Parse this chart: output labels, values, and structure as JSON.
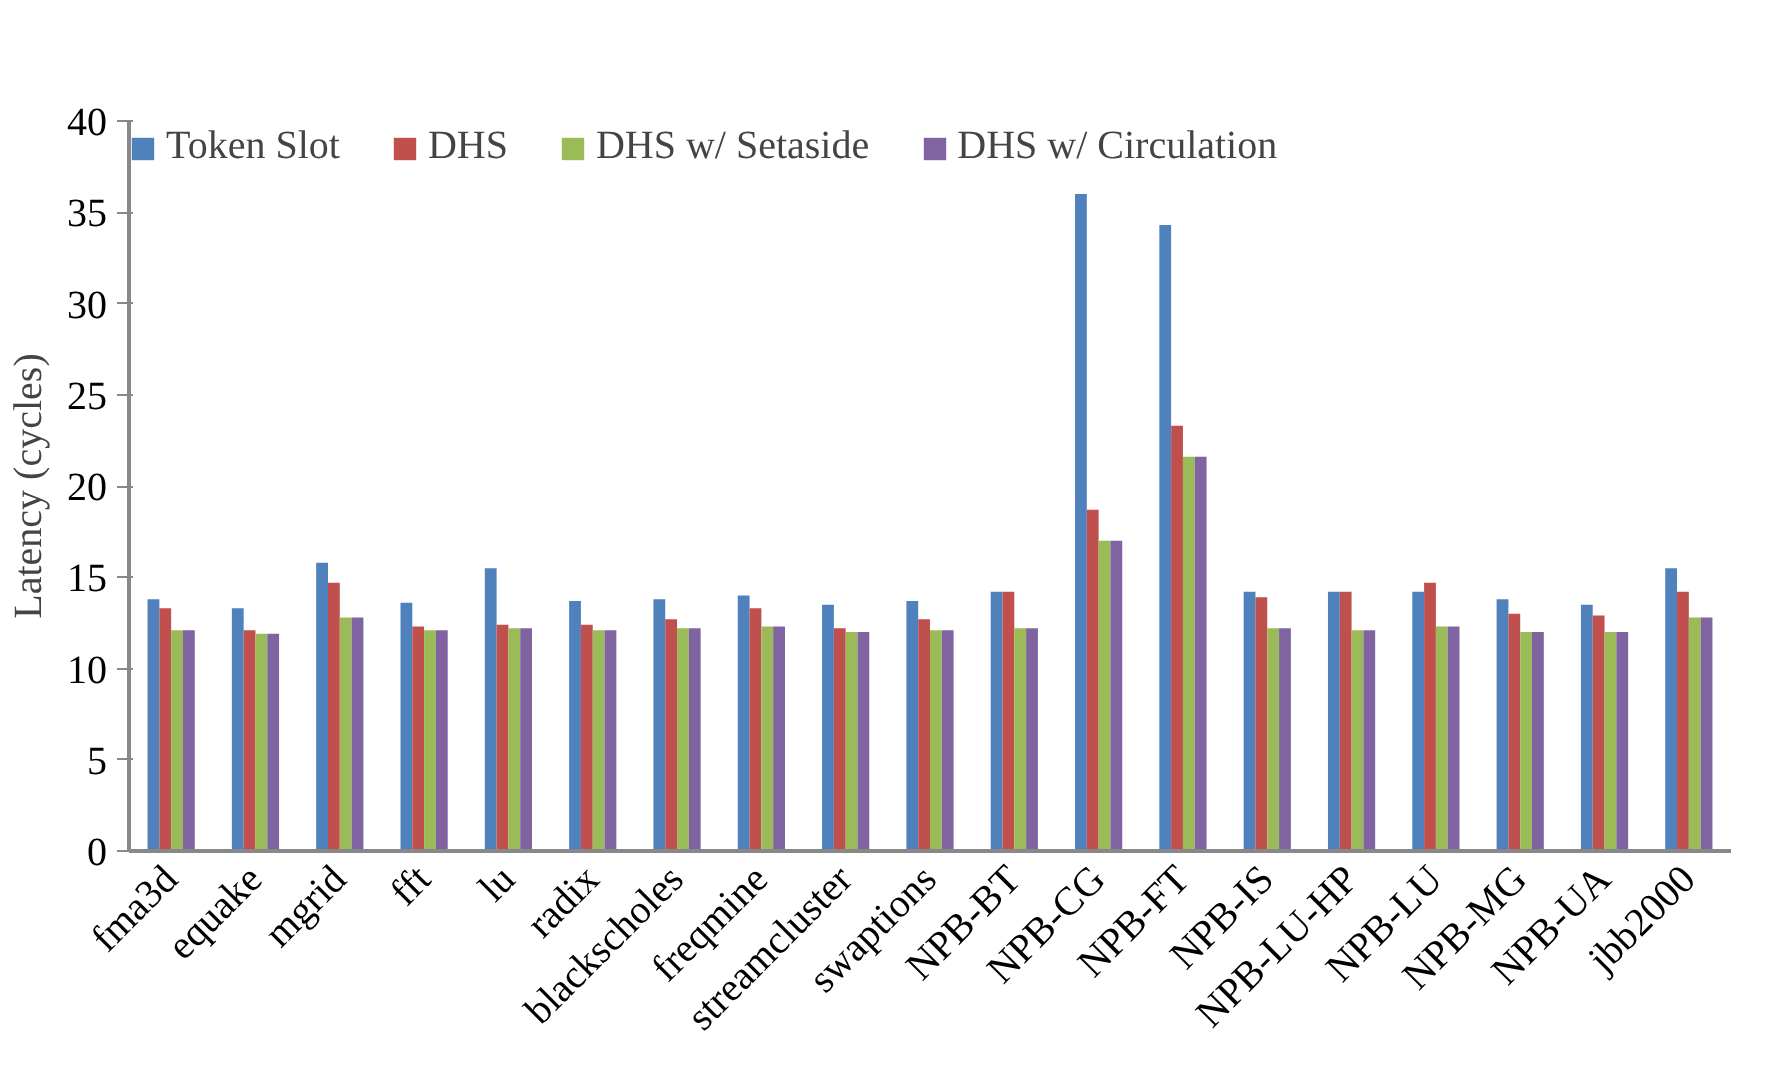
{
  "chart_data": {
    "type": "bar",
    "ylabel": "Latency (cycles)",
    "categories": [
      "fma3d",
      "equake",
      "mgrid",
      "fft",
      "lu",
      "radix",
      "blackscholes",
      "freqmine",
      "streamcluster",
      "swaptions",
      "NPB-BT",
      "NPB-CG",
      "NPB-FT",
      "NPB-IS",
      "NPB-LU-HP",
      "NPB-LU",
      "NPB-MG",
      "NPB-UA",
      "jbb2000"
    ],
    "series": [
      {
        "name": "Token Slot",
        "color": "#4f81bd",
        "values": [
          13.8,
          13.3,
          15.8,
          13.6,
          15.5,
          13.7,
          13.8,
          14.0,
          13.5,
          13.7,
          14.2,
          36.0,
          34.3,
          14.2,
          14.2,
          14.2,
          13.8,
          13.5,
          15.5
        ]
      },
      {
        "name": "DHS",
        "color": "#c0504d",
        "values": [
          13.3,
          12.1,
          14.7,
          12.3,
          12.4,
          12.4,
          12.7,
          13.3,
          12.2,
          12.7,
          14.2,
          18.7,
          23.3,
          13.9,
          14.2,
          14.7,
          13.0,
          12.9,
          14.2
        ]
      },
      {
        "name": "DHS w/ Setaside",
        "color": "#9bbb59",
        "values": [
          12.1,
          11.9,
          12.8,
          12.1,
          12.2,
          12.1,
          12.2,
          12.3,
          12.0,
          12.1,
          12.2,
          17.0,
          21.6,
          12.2,
          12.1,
          12.3,
          12.0,
          12.0,
          12.8
        ]
      },
      {
        "name": "DHS w/ Circulation",
        "color": "#8064a2",
        "values": [
          12.1,
          11.9,
          12.8,
          12.1,
          12.2,
          12.1,
          12.2,
          12.3,
          12.0,
          12.1,
          12.2,
          17.0,
          21.6,
          12.2,
          12.1,
          12.3,
          12.0,
          12.0,
          12.8
        ]
      }
    ],
    "ylim": [
      0,
      40
    ],
    "yticks": [
      0,
      5,
      10,
      15,
      20,
      25,
      30,
      35,
      40
    ],
    "grid": false,
    "legend": "top"
  }
}
